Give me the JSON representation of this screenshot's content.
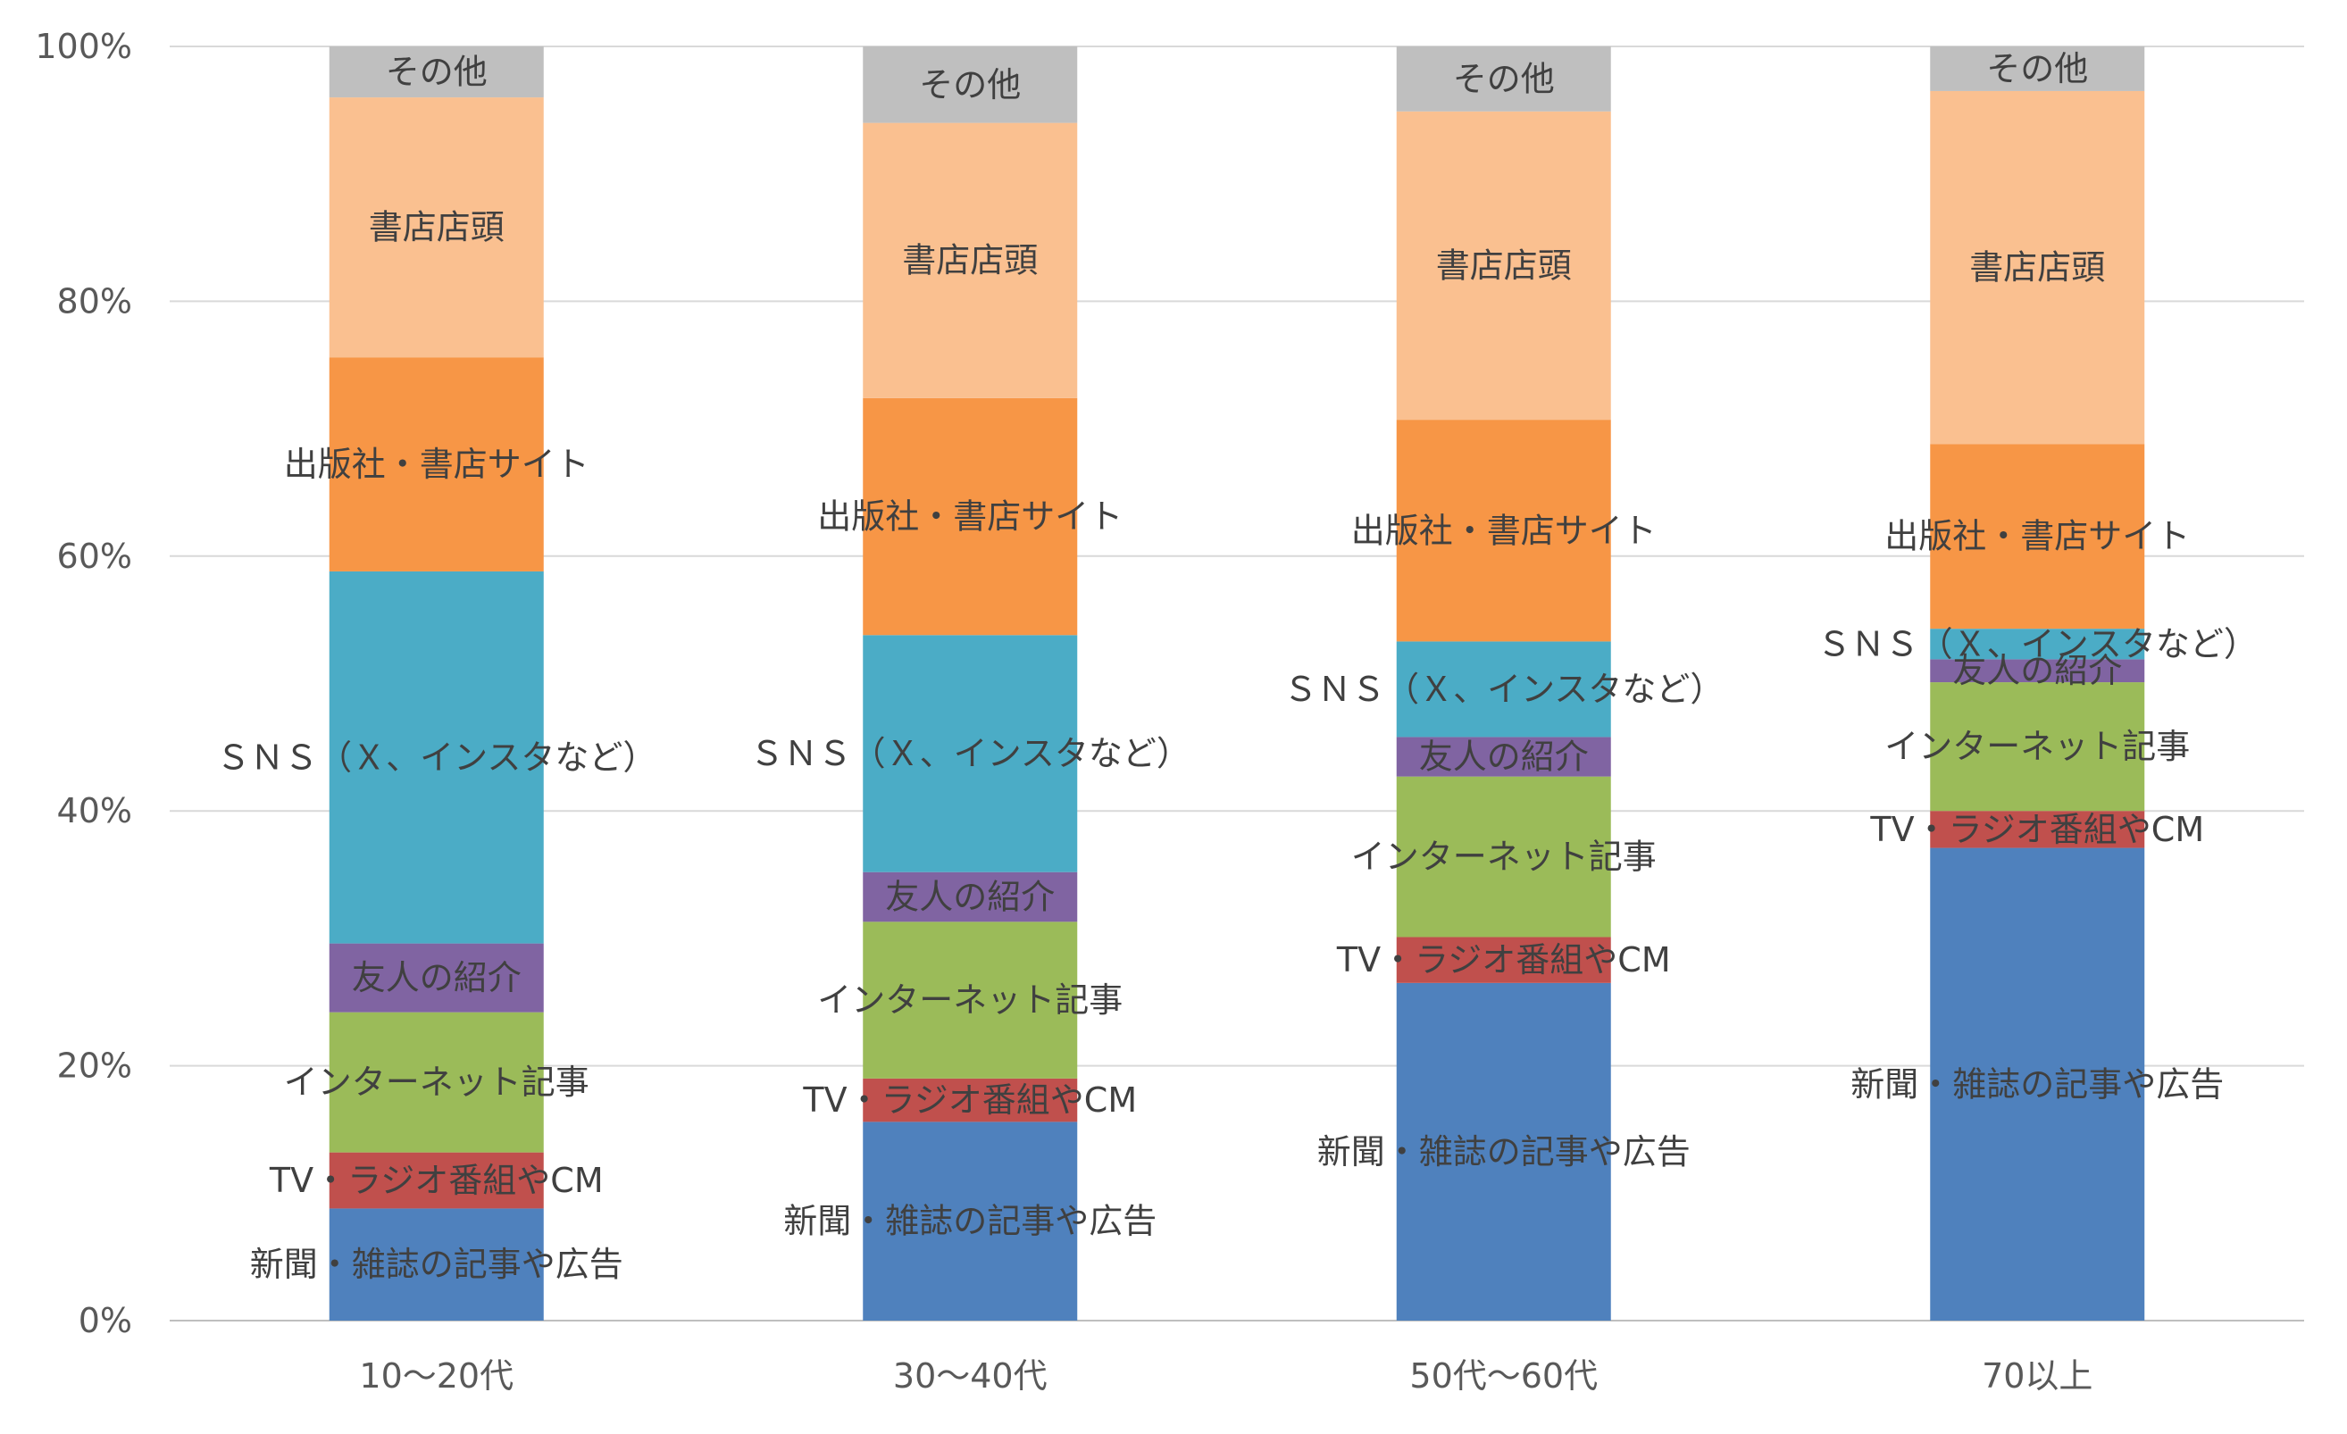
{
  "chart_data": {
    "type": "bar",
    "stacked": true,
    "percent_stacked": true,
    "categories": [
      "10〜20代",
      "30〜40代",
      "50代〜60代",
      "70以上"
    ],
    "series": [
      {
        "name": "新聞・雑誌の記事や広告",
        "values": [
          8.8,
          15.6,
          26.5,
          37.1
        ],
        "color": "#4F81BD"
      },
      {
        "name": "TV・ラジオ番組やCM",
        "values": [
          4.4,
          3.4,
          3.6,
          2.9
        ],
        "color": "#C0504D"
      },
      {
        "name": "インターネット記事",
        "values": [
          11.0,
          12.3,
          12.6,
          10.1
        ],
        "color": "#9BBB59"
      },
      {
        "name": "友人の紹介",
        "values": [
          5.4,
          3.9,
          3.1,
          1.8
        ],
        "color": "#8064A2"
      },
      {
        "name": "ＳＮＳ（Ｘ、インスタなど）",
        "values": [
          29.2,
          18.6,
          7.5,
          2.4
        ],
        "color": "#4BACC6"
      },
      {
        "name": "出版社・書店サイト",
        "values": [
          16.8,
          18.6,
          17.4,
          14.5
        ],
        "color": "#F79646"
      },
      {
        "name": "書店店頭",
        "values": [
          20.4,
          21.6,
          24.2,
          27.7
        ],
        "color": "#FAC090"
      },
      {
        "name": "その他",
        "values": [
          4.0,
          6.0,
          5.1,
          3.5
        ],
        "color": "#BFBFBF"
      }
    ],
    "y_ticks": [
      "0%",
      "20%",
      "40%",
      "60%",
      "80%",
      "100%"
    ],
    "ylim": [
      0,
      100
    ],
    "grid": true,
    "legend": "none"
  }
}
